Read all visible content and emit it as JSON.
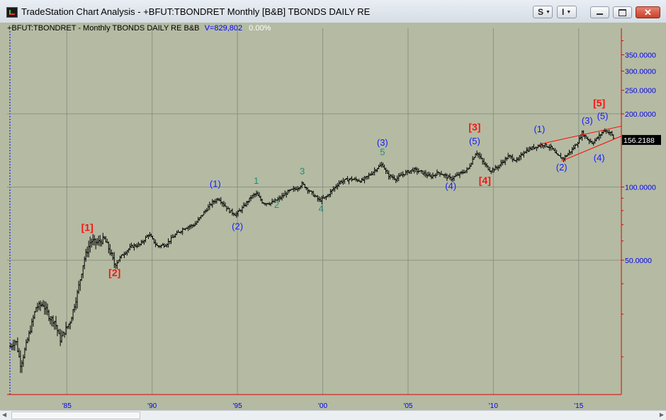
{
  "window": {
    "title": "TradeStation Chart Analysis - +BFUT:TBONDRET Monthly [B&B] TBONDS DAILY RE",
    "buttons": {
      "s_label": "S",
      "i_label": "I",
      "close_glyph": "✕"
    },
    "icons": [
      "tradestation-app-icon",
      "minimize-icon",
      "maximize-icon",
      "close-icon",
      "dropdown-arrow-icon"
    ]
  },
  "infobar": {
    "symbol_text": "+BFUT:TBONDRET - Monthly  TBONDS DAILY RE  B&B",
    "volume_text": "V=829,802",
    "change_text": "0.00%"
  },
  "colors": {
    "plot_background": "#b4bba2",
    "bar_color": "#000000",
    "gridline": "#8b9187",
    "axis_line": "#e00000",
    "price_axis_text": "#0000ee",
    "label_red": "#ff1010",
    "label_blue": "#1a1aff",
    "label_teal": "#1e8c7c",
    "last_price_box": "#000000"
  },
  "chart_data": {
    "type": "ohlc-bar",
    "frequency": "Monthly",
    "scale": "log",
    "grid": true,
    "xlabels": [
      "'85",
      "'90",
      "'95",
      "'00",
      "'05",
      "'10",
      "'15"
    ],
    "xlim": [
      1981.5,
      2017.5
    ],
    "ylim": [
      14,
      450
    ],
    "y_ticks": [
      350,
      300,
      250,
      200,
      100,
      50
    ],
    "y_tick_labels": [
      "350.0000",
      "300.0000",
      "250.0000",
      "200.0000",
      "100.0000",
      "50.0000"
    ],
    "last_price": 156.2188,
    "last_price_label": "156.2188",
    "path": [
      [
        1981.7,
        22
      ],
      [
        1982.0,
        23.5
      ],
      [
        1982.3,
        18.5
      ],
      [
        1982.8,
        25
      ],
      [
        1983.2,
        32
      ],
      [
        1983.6,
        33
      ],
      [
        1984.0,
        29
      ],
      [
        1984.3,
        28
      ],
      [
        1984.6,
        23.5
      ],
      [
        1985.2,
        28
      ],
      [
        1985.6,
        36
      ],
      [
        1986.0,
        50
      ],
      [
        1986.4,
        60
      ],
      [
        1986.8,
        59
      ],
      [
        1987.2,
        61
      ],
      [
        1987.5,
        55
      ],
      [
        1987.8,
        48
      ],
      [
        1988.3,
        53
      ],
      [
        1988.8,
        57
      ],
      [
        1989.3,
        58
      ],
      [
        1989.8,
        64
      ],
      [
        1990.3,
        57
      ],
      [
        1990.8,
        58
      ],
      [
        1991.3,
        63
      ],
      [
        1991.9,
        68
      ],
      [
        1992.5,
        70
      ],
      [
        1993.0,
        78
      ],
      [
        1993.5,
        86
      ],
      [
        1993.9,
        90
      ],
      [
        1994.5,
        80
      ],
      [
        1994.9,
        77
      ],
      [
        1995.3,
        82
      ],
      [
        1995.8,
        91
      ],
      [
        1996.1,
        94
      ],
      [
        1996.5,
        86
      ],
      [
        1997.0,
        86
      ],
      [
        1997.5,
        90
      ],
      [
        1998.0,
        96
      ],
      [
        1998.5,
        99
      ],
      [
        1998.8,
        103
      ],
      [
        1999.3,
        95
      ],
      [
        1999.8,
        88
      ],
      [
        2000.2,
        91
      ],
      [
        2000.6,
        98
      ],
      [
        2001.0,
        105
      ],
      [
        2001.6,
        108
      ],
      [
        2002.3,
        106
      ],
      [
        2002.8,
        113
      ],
      [
        2003.2,
        120
      ],
      [
        2003.5,
        124
      ],
      [
        2003.8,
        112
      ],
      [
        2004.3,
        108
      ],
      [
        2004.8,
        114
      ],
      [
        2005.3,
        118
      ],
      [
        2005.8,
        115
      ],
      [
        2006.3,
        110
      ],
      [
        2006.8,
        115
      ],
      [
        2007.3,
        110
      ],
      [
        2007.5,
        108
      ],
      [
        2008.0,
        113
      ],
      [
        2008.5,
        118
      ],
      [
        2009.0,
        140
      ],
      [
        2009.4,
        126
      ],
      [
        2009.8,
        117
      ],
      [
        2010.2,
        120
      ],
      [
        2010.6,
        128
      ],
      [
        2010.9,
        134
      ],
      [
        2011.4,
        128
      ],
      [
        2011.8,
        140
      ],
      [
        2012.4,
        146
      ],
      [
        2012.9,
        150
      ],
      [
        2013.4,
        145
      ],
      [
        2013.7,
        135
      ],
      [
        2014.1,
        131
      ],
      [
        2014.6,
        142
      ],
      [
        2015.0,
        155
      ],
      [
        2015.2,
        167
      ],
      [
        2015.5,
        158
      ],
      [
        2015.8,
        152
      ],
      [
        2016.2,
        162
      ],
      [
        2016.5,
        172
      ],
      [
        2016.9,
        166
      ],
      [
        2017.1,
        156
      ]
    ],
    "wave_labels": [
      {
        "text": "[1]",
        "x": 1986.2,
        "y": 66,
        "color": "label_red",
        "weight": "bold"
      },
      {
        "text": "[2]",
        "x": 1987.8,
        "y": 43,
        "color": "label_red",
        "weight": "bold"
      },
      {
        "text": "(1)",
        "x": 1993.7,
        "y": 100,
        "color": "label_blue",
        "weight": "normal"
      },
      {
        "text": "(2)",
        "x": 1995.0,
        "y": 67,
        "color": "label_blue",
        "weight": "normal"
      },
      {
        "text": "1",
        "x": 1996.1,
        "y": 103,
        "color": "label_teal",
        "weight": "normal"
      },
      {
        "text": "2",
        "x": 1997.3,
        "y": 82,
        "color": "label_teal",
        "weight": "normal"
      },
      {
        "text": "3",
        "x": 1998.8,
        "y": 113,
        "color": "label_teal",
        "weight": "normal"
      },
      {
        "text": "4",
        "x": 1999.9,
        "y": 79,
        "color": "label_teal",
        "weight": "normal"
      },
      {
        "text": "(3)",
        "x": 2003.5,
        "y": 148,
        "color": "label_blue",
        "weight": "normal"
      },
      {
        "text": "5",
        "x": 2003.5,
        "y": 135,
        "color": "label_teal",
        "weight": "normal"
      },
      {
        "text": "(4)",
        "x": 2007.5,
        "y": 98,
        "color": "label_blue",
        "weight": "normal"
      },
      {
        "text": "[3]",
        "x": 2008.9,
        "y": 171,
        "color": "label_red",
        "weight": "bold"
      },
      {
        "text": "(5)",
        "x": 2008.9,
        "y": 150,
        "color": "label_blue",
        "weight": "normal"
      },
      {
        "text": "[4]",
        "x": 2009.5,
        "y": 103,
        "color": "label_red",
        "weight": "bold"
      },
      {
        "text": "(1)",
        "x": 2012.7,
        "y": 168,
        "color": "label_blue",
        "weight": "normal"
      },
      {
        "text": "(2)",
        "x": 2014.0,
        "y": 117,
        "color": "label_blue",
        "weight": "normal"
      },
      {
        "text": "(3)",
        "x": 2015.5,
        "y": 182,
        "color": "label_blue",
        "weight": "normal"
      },
      {
        "text": "(4)",
        "x": 2016.2,
        "y": 128,
        "color": "label_blue",
        "weight": "normal"
      },
      {
        "text": "[5]",
        "x": 2016.2,
        "y": 215,
        "color": "label_red",
        "weight": "bold"
      },
      {
        "text": "(5)",
        "x": 2016.4,
        "y": 190,
        "color": "label_blue",
        "weight": "normal"
      }
    ],
    "trendlines": [
      {
        "from": [
          2012.7,
          150
        ],
        "to": [
          2017.5,
          178
        ]
      },
      {
        "from": [
          2014.0,
          128
        ],
        "to": [
          2017.5,
          162
        ]
      }
    ]
  }
}
